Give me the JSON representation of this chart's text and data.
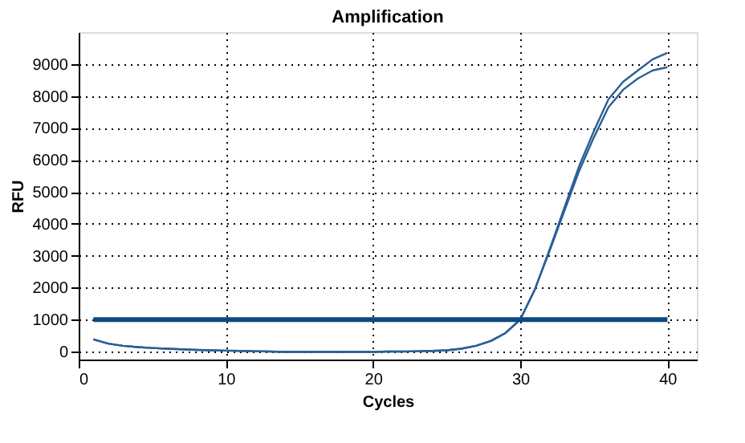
{
  "chart_data": {
    "type": "line",
    "title": "Amplification",
    "xlabel": "Cycles",
    "ylabel": "RFU",
    "x": [
      1,
      2,
      3,
      4,
      5,
      6,
      7,
      8,
      9,
      10,
      11,
      12,
      13,
      14,
      15,
      16,
      17,
      18,
      19,
      20,
      21,
      22,
      23,
      24,
      25,
      26,
      27,
      28,
      29,
      30,
      31,
      32,
      33,
      34,
      35,
      36,
      37,
      38,
      39,
      40
    ],
    "series": [
      {
        "color": "#2b5f95",
        "values": [
          380,
          250,
          180,
          140,
          110,
          90,
          70,
          50,
          40,
          30,
          20,
          10,
          0,
          -10,
          -10,
          -10,
          -10,
          -10,
          -10,
          -10,
          0,
          0,
          10,
          20,
          40,
          90,
          180,
          330,
          580,
          1000,
          1950,
          3200,
          4500,
          5800,
          6900,
          7900,
          8450,
          8800,
          9150,
          9350
        ]
      },
      {
        "color": "#2b5f95",
        "values": [
          380,
          250,
          180,
          140,
          110,
          90,
          70,
          50,
          40,
          30,
          20,
          10,
          0,
          -10,
          -10,
          -10,
          -10,
          -10,
          -10,
          -10,
          0,
          0,
          10,
          20,
          40,
          90,
          180,
          330,
          580,
          1000,
          1950,
          3150,
          4400,
          5650,
          6700,
          7650,
          8200,
          8550,
          8800,
          8900
        ]
      }
    ],
    "ref_lines": [
      {
        "axis": "y",
        "value": 1000,
        "color": "#0b4a80"
      }
    ],
    "xlim": [
      0,
      42
    ],
    "ylim": [
      -250,
      10000
    ],
    "xticks": [
      0,
      10,
      20,
      30,
      40
    ],
    "yticks": [
      0,
      1000,
      2000,
      3000,
      4000,
      5000,
      6000,
      7000,
      8000,
      9000
    ],
    "grid": true,
    "marker": "none",
    "line_style": "solid"
  }
}
